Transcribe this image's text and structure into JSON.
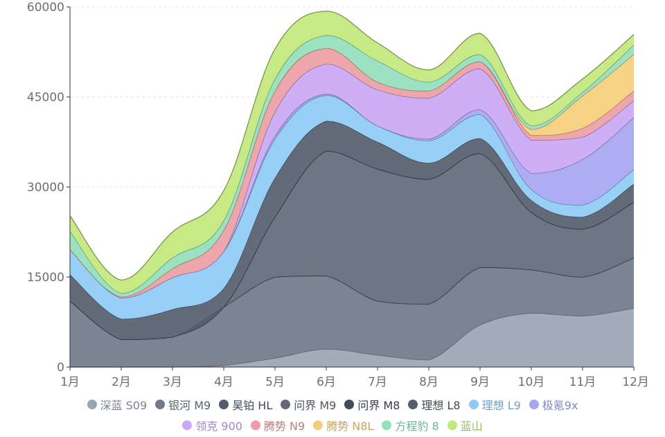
{
  "chart_data": {
    "type": "area",
    "stacked": true,
    "categories": [
      "1月",
      "2月",
      "3月",
      "4月",
      "5月",
      "6月",
      "7月",
      "8月",
      "9月",
      "10月",
      "11月",
      "12月"
    ],
    "yticks": [
      0,
      15000,
      30000,
      45000,
      60000
    ],
    "ylim": [
      0,
      60000
    ],
    "grid": "horizontal-dashed",
    "legend_position": "bottom",
    "series": [
      {
        "name": "深蓝 S09",
        "color": "#9aa5b4",
        "values": [
          0,
          0,
          0,
          300,
          1500,
          3000,
          2000,
          1200,
          7000,
          9000,
          8500,
          9800
        ]
      },
      {
        "name": "银河 M9",
        "color": "#6f7a8a",
        "values": [
          11000,
          4600,
          5000,
          9700,
          13500,
          12200,
          9000,
          9300,
          9600,
          7200,
          6500,
          8400
        ]
      },
      {
        "name": "昊铂 HL",
        "color": "#525c6b",
        "values": [
          0,
          0,
          0,
          0,
          0,
          0,
          0,
          0,
          0,
          0,
          0,
          0
        ]
      },
      {
        "name": "问界 M9",
        "color": "#626a79",
        "values": [
          0,
          0,
          0,
          0,
          10000,
          20800,
          22000,
          20800,
          19000,
          9600,
          8000,
          9300
        ]
      },
      {
        "name": "问界 M8",
        "color": "#434a58",
        "values": [
          0,
          0,
          0,
          0,
          0,
          0,
          0,
          0,
          0,
          0,
          0,
          0
        ]
      },
      {
        "name": "理想 L8",
        "color": "#565d6c",
        "values": [
          4400,
          3400,
          4600,
          3100,
          6500,
          5000,
          4500,
          2700,
          2500,
          2000,
          2000,
          3000
        ]
      },
      {
        "name": "理想 L9",
        "color": "#8ecbf5",
        "values": [
          4200,
          3500,
          5300,
          6200,
          6500,
          4300,
          2700,
          3700,
          4000,
          1800,
          2000,
          2400
        ]
      },
      {
        "name": "极氪9x",
        "color": "#a6a6f2",
        "values": [
          0,
          0,
          0,
          0,
          500,
          200,
          0,
          300,
          800,
          2700,
          7600,
          8700
        ]
      },
      {
        "name": "领克 900",
        "color": "#caa8f5",
        "values": [
          0,
          0,
          0,
          0,
          4000,
          5000,
          6000,
          6800,
          6800,
          5500,
          3700,
          2800
        ]
      },
      {
        "name": "腾势 N9",
        "color": "#eb9ea5",
        "values": [
          0,
          200,
          1500,
          3500,
          3500,
          2600,
          1300,
          1200,
          1200,
          800,
          1500,
          1600
        ]
      },
      {
        "name": "腾势 N8L",
        "color": "#f5ce7a",
        "values": [
          0,
          0,
          0,
          0,
          0,
          0,
          0,
          0,
          0,
          1000,
          5400,
          6100
        ]
      },
      {
        "name": "方程豹 8",
        "color": "#94e0bd",
        "values": [
          3000,
          600,
          1800,
          1600,
          2000,
          2200,
          3500,
          1500,
          1200,
          600,
          600,
          1600
        ]
      },
      {
        "name": "蓝山",
        "color": "#c2e87c",
        "values": [
          2600,
          2200,
          4300,
          5000,
          5000,
          4000,
          3000,
          2000,
          3500,
          2500,
          2200,
          1700
        ]
      }
    ]
  }
}
